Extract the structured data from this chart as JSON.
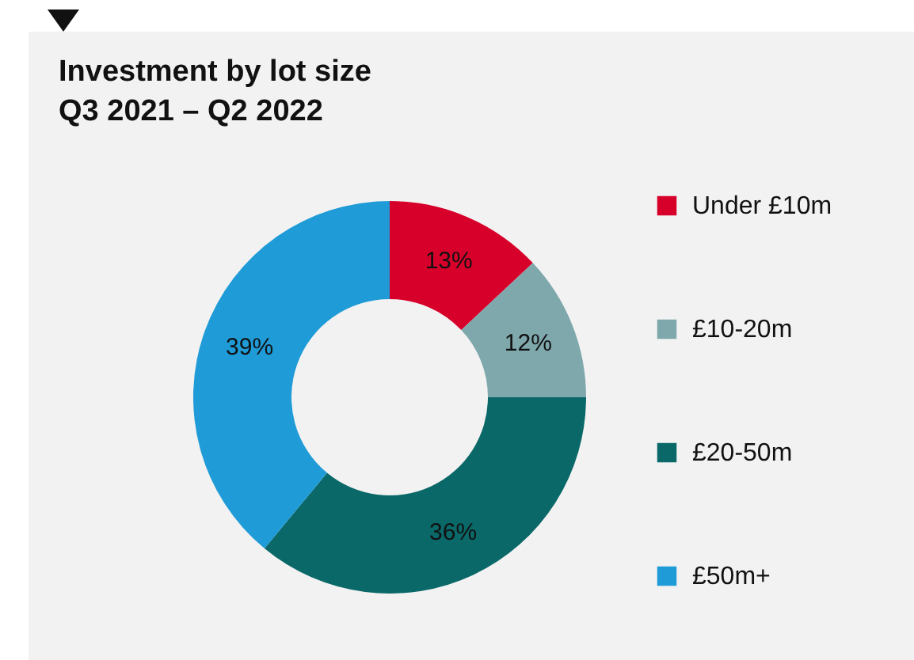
{
  "chart_data": {
    "type": "donut",
    "title": "Investment by lot size\nQ3 2021 – Q2 2022",
    "categories": [
      "Under £10m",
      "£10-20m",
      "£20-50m",
      "£50m+"
    ],
    "values": [
      13,
      12,
      36,
      39
    ],
    "colors": [
      "#d7002b",
      "#7fa8ad",
      "#0a6869",
      "#1f9bd7"
    ],
    "value_labels": [
      "13%",
      "12%",
      "36%",
      "39%"
    ],
    "legend": "right"
  }
}
